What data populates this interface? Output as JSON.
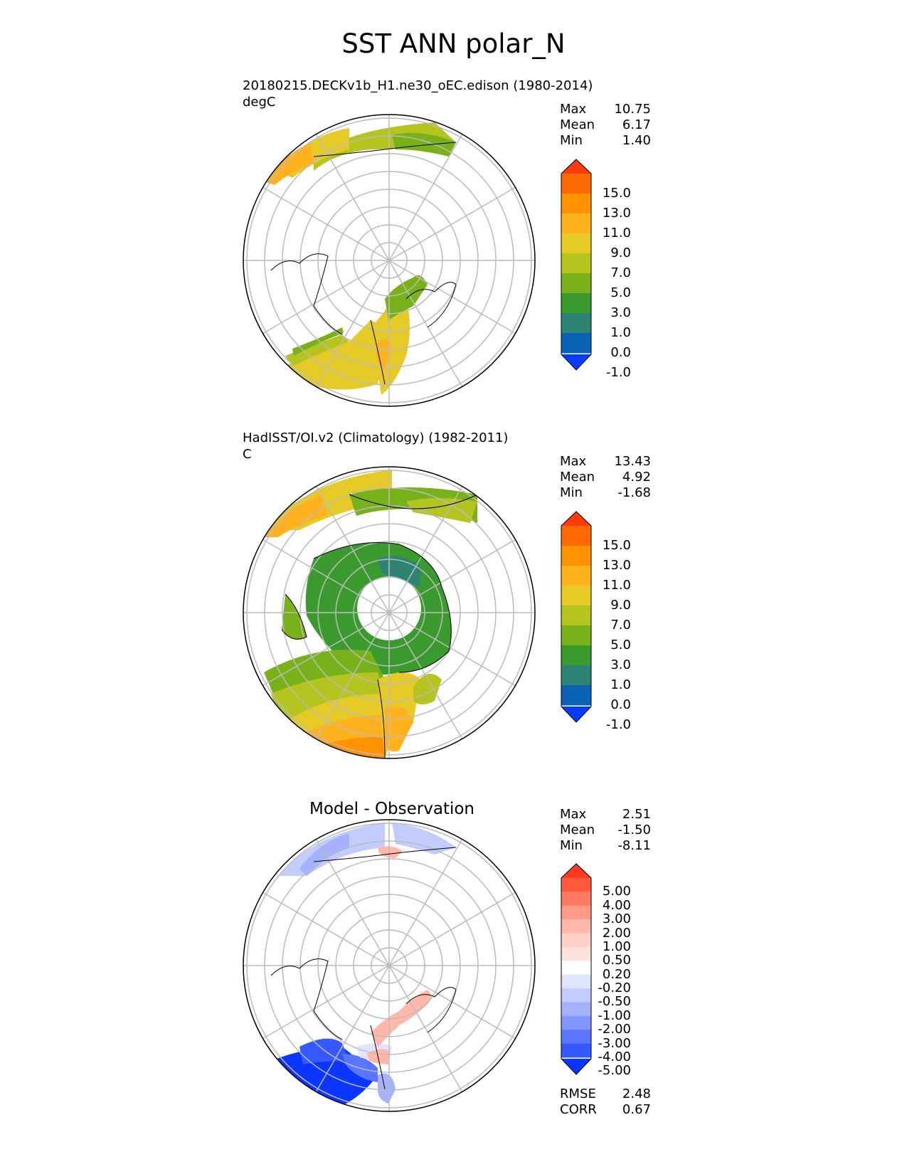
{
  "title": "SST ANN polar_N",
  "panels": [
    {
      "title": "20180215.DECKv1b_H1.ne30_oEC.edison (1980-2014)",
      "units": "degC",
      "stats": [
        {
          "label": "Max",
          "value": "10.75"
        },
        {
          "label": "Mean",
          "value": "6.17"
        },
        {
          "label": "Min",
          "value": "1.40"
        }
      ],
      "colorbar": {
        "labels": [
          "15.0",
          "13.0",
          "11.0",
          "9.0",
          "7.0",
          "5.0",
          "3.0",
          "1.0",
          "0.0",
          "-1.0"
        ],
        "colors_top_to_bottom": [
          "#ff3a0d",
          "#ff6a00",
          "#ff9200",
          "#ffb21e",
          "#e6cb28",
          "#b5c41e",
          "#79b11a",
          "#3b9a2e",
          "#2e8474",
          "#0a62b4",
          "#0a3cff"
        ]
      }
    },
    {
      "title": "HadISST/OI.v2 (Climatology) (1982-2011)",
      "units": "C",
      "stats": [
        {
          "label": "Max",
          "value": "13.43"
        },
        {
          "label": "Mean",
          "value": "4.92"
        },
        {
          "label": "Min",
          "value": "-1.68"
        }
      ],
      "colorbar": {
        "labels": [
          "15.0",
          "13.0",
          "11.0",
          "9.0",
          "7.0",
          "5.0",
          "3.0",
          "1.0",
          "0.0",
          "-1.0"
        ],
        "colors_top_to_bottom": [
          "#ff3a0d",
          "#ff6a00",
          "#ff9200",
          "#ffb21e",
          "#e6cb28",
          "#b5c41e",
          "#79b11a",
          "#3b9a2e",
          "#2e8474",
          "#0a62b4",
          "#0a3cff"
        ]
      }
    },
    {
      "title": "Model - Observation",
      "units": "",
      "stats": [
        {
          "label": "Max",
          "value": "2.51"
        },
        {
          "label": "Mean",
          "value": "-1.50"
        },
        {
          "label": "Min",
          "value": "-8.11"
        }
      ],
      "colorbar": {
        "labels": [
          "5.00",
          "4.00",
          "3.00",
          "2.00",
          "1.00",
          "0.50",
          "0.20",
          "-0.20",
          "-0.50",
          "-1.00",
          "-2.00",
          "-3.00",
          "-4.00",
          "-5.00"
        ],
        "colors_top_to_bottom": [
          "#ff3a1f",
          "#ff5a3c",
          "#ff7a5e",
          "#ff9a86",
          "#ffb8aa",
          "#ffd0c6",
          "#fde3de",
          "#ffffff",
          "#dfe4ff",
          "#c3ccff",
          "#a4b2ff",
          "#8196ff",
          "#5a76ff",
          "#3558ff",
          "#0a36ff"
        ]
      },
      "metrics": [
        {
          "label": "RMSE",
          "value": "2.48"
        },
        {
          "label": "CORR",
          "value": "0.67"
        }
      ]
    }
  ],
  "colors": {
    "ocean_warm": "#ff9200",
    "ocean_mid": "#e6cb28",
    "ocean_cool": "#79b11a",
    "ocean_cold": "#3b9a2e",
    "diff_negative": "#0a36ff",
    "diff_positive": "#ff9a86",
    "coastline": "#000000",
    "graticule": "#bbbbbb"
  }
}
